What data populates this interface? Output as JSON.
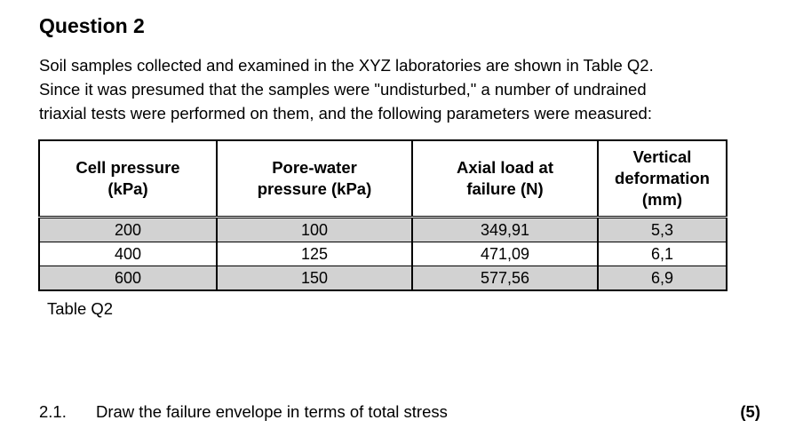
{
  "heading": "Question 2",
  "intro": {
    "lines": [
      "Soil samples collected and examined in the XYZ laboratories are shown in Table Q2.",
      "Since it was presumed that the samples were \"undisturbed,\" a number of undrained",
      "triaxial tests were performed on them, and the following parameters were measured:"
    ]
  },
  "table": {
    "headers": [
      [
        "Cell pressure",
        "(kPa)"
      ],
      [
        "Pore-water",
        "pressure (kPa)"
      ],
      [
        "Axial load at",
        "failure (N)"
      ],
      [
        "Vertical",
        "deformation",
        "(mm)"
      ]
    ],
    "rows": [
      [
        "200",
        "100",
        "349,91",
        "5,3"
      ],
      [
        "400",
        "125",
        "471,09",
        "6,1"
      ],
      [
        "600",
        "150",
        "577,56",
        "6,9"
      ]
    ],
    "row_shading": "#d2d2d2",
    "caption": "Table Q2"
  },
  "question_item": {
    "number": "2.1.",
    "text": "Draw the failure envelope in terms of total stress",
    "marks": "(5)"
  }
}
